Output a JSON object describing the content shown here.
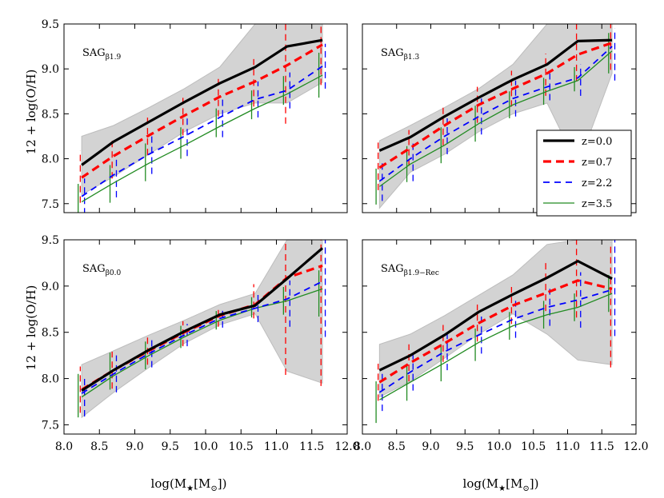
{
  "figure": {
    "ylabel": "12 + log(O/H)",
    "xlabel_main": "log(M",
    "xlabel_sub": "★",
    "xlabel_unit": "[M",
    "xlabel_unit_sub": "⊙",
    "xlabel_close": "])"
  },
  "chart_data": [
    {
      "type": "line",
      "panel_label": "SAG",
      "panel_label_sub": "β1.9",
      "xlim": [
        8.0,
        12.0
      ],
      "ylim": [
        7.4,
        9.5
      ],
      "xticks": [
        "8.0",
        "8.5",
        "9.0",
        "9.5",
        "10.0",
        "10.5",
        "11.0",
        "11.5",
        "12.0"
      ],
      "yticks": [
        "7.5",
        "8.0",
        "8.5",
        "9.0",
        "9.5"
      ],
      "x": [
        8.25,
        8.7,
        9.2,
        9.7,
        10.2,
        10.7,
        11.15,
        11.65
      ],
      "band": {
        "lower": [
          7.6,
          7.8,
          8.05,
          8.3,
          8.5,
          8.62,
          8.62,
          8.85
        ],
        "upper": [
          8.25,
          8.37,
          8.57,
          8.78,
          9.02,
          9.5,
          9.5,
          9.5
        ]
      },
      "series": [
        {
          "name": "z=0.0",
          "color": "#000000",
          "style": "solid",
          "values": [
            7.93,
            8.19,
            8.41,
            8.63,
            8.84,
            9.02,
            9.25,
            9.32
          ],
          "err_lo": [
            0,
            0,
            0,
            0,
            0,
            0,
            0,
            0
          ],
          "err_hi": [
            0,
            0,
            0,
            0,
            0,
            0,
            0,
            0
          ]
        },
        {
          "name": "z=0.7",
          "color": "#ff0000",
          "style": "dash",
          "values": [
            7.79,
            8.03,
            8.26,
            8.48,
            8.69,
            8.86,
            9.04,
            9.27
          ],
          "err_lo": [
            0.28,
            0.25,
            0.22,
            0.22,
            0.22,
            0.28,
            0.65,
            0.45
          ],
          "err_hi": [
            0.3,
            0.2,
            0.2,
            0.2,
            0.2,
            0.25,
            0.5,
            0.3
          ]
        },
        {
          "name": "z=2.2",
          "color": "#0000ff",
          "style": "dash",
          "values": [
            7.58,
            7.82,
            8.05,
            8.25,
            8.46,
            8.66,
            8.76,
            9.03
          ],
          "err_lo": [
            0.2,
            0.25,
            0.22,
            0.22,
            0.22,
            0.2,
            0.2,
            0.25
          ],
          "err_hi": [
            0.2,
            0.22,
            0.22,
            0.2,
            0.2,
            0.2,
            0.2,
            0.25
          ]
        },
        {
          "name": "z=3.5",
          "color": "#228b22",
          "style": "solid",
          "values": [
            7.52,
            7.73,
            7.95,
            8.15,
            8.36,
            8.56,
            8.72,
            8.93
          ],
          "err_lo": [
            0.12,
            0.22,
            0.2,
            0.15,
            0.12,
            0.12,
            0.12,
            0.25
          ],
          "err_hi": [
            0.2,
            0.2,
            0.22,
            0.2,
            0.2,
            0.2,
            0.2,
            0.25
          ]
        }
      ]
    },
    {
      "type": "line",
      "panel_label": "SAG",
      "panel_label_sub": "β1.3",
      "xlim": [
        8.0,
        12.0
      ],
      "ylim": [
        7.4,
        9.5
      ],
      "xticks": [
        "8.0",
        "8.5",
        "9.0",
        "9.5",
        "10.0",
        "10.5",
        "11.0",
        "11.5",
        "12.0"
      ],
      "yticks": [
        "7.5",
        "8.0",
        "8.5",
        "9.0",
        "9.5"
      ],
      "x": [
        8.25,
        8.7,
        9.2,
        9.7,
        10.2,
        10.7,
        11.15,
        11.65
      ],
      "band": {
        "lower": [
          7.45,
          7.85,
          8.05,
          8.3,
          8.5,
          8.62,
          7.92,
          8.95
        ],
        "upper": [
          8.2,
          8.37,
          8.57,
          8.78,
          9.05,
          9.5,
          9.5,
          9.5
        ]
      },
      "series": [
        {
          "name": "z=0.0",
          "color": "#000000",
          "style": "solid",
          "values": [
            8.09,
            8.24,
            8.47,
            8.68,
            8.88,
            9.05,
            9.31,
            9.32
          ],
          "err_lo": [
            0,
            0,
            0,
            0,
            0,
            0,
            0,
            0
          ],
          "err_hi": [
            0,
            0,
            0,
            0,
            0,
            0,
            0,
            0
          ]
        },
        {
          "name": "z=0.7",
          "color": "#ff0000",
          "style": "dash",
          "values": [
            7.9,
            8.12,
            8.37,
            8.6,
            8.78,
            8.95,
            9.16,
            9.29
          ],
          "err_lo": [
            0.25,
            0.2,
            0.22,
            0.2,
            0.2,
            0.25,
            0.3,
            0.3
          ],
          "err_hi": [
            0.28,
            0.2,
            0.2,
            0.2,
            0.2,
            0.22,
            0.45,
            0.35
          ]
        },
        {
          "name": "z=2.2",
          "color": "#0000ff",
          "style": "dash",
          "values": [
            7.75,
            8.0,
            8.25,
            8.47,
            8.67,
            8.8,
            8.9,
            9.25
          ],
          "err_lo": [
            0.22,
            0.25,
            0.2,
            0.2,
            0.2,
            0.15,
            0.2,
            0.38
          ],
          "err_hi": [
            0.2,
            0.2,
            0.2,
            0.2,
            0.2,
            0.15,
            0.15,
            0.2
          ]
        },
        {
          "name": "z=3.5",
          "color": "#228b22",
          "style": "solid",
          "values": [
            7.69,
            7.94,
            8.15,
            8.39,
            8.6,
            8.75,
            8.87,
            9.2
          ],
          "err_lo": [
            0.2,
            0.2,
            0.2,
            0.2,
            0.15,
            0.15,
            0.12,
            0.25
          ],
          "err_hi": [
            0.2,
            0.2,
            0.2,
            0.2,
            0.15,
            0.15,
            0.15,
            0.2
          ]
        }
      ]
    },
    {
      "type": "line",
      "panel_label": "SAG",
      "panel_label_sub": "β0.0",
      "xlim": [
        8.0,
        12.0
      ],
      "ylim": [
        7.4,
        9.5
      ],
      "xticks": [
        "8.0",
        "8.5",
        "9.0",
        "9.5",
        "10.0",
        "10.5",
        "11.0",
        "11.5",
        "12.0"
      ],
      "yticks": [
        "7.5",
        "8.0",
        "8.5",
        "9.0",
        "9.5"
      ],
      "x": [
        8.25,
        8.7,
        9.2,
        9.7,
        10.2,
        10.7,
        11.15,
        11.65
      ],
      "band": {
        "lower": [
          7.58,
          7.85,
          8.12,
          8.38,
          8.58,
          8.7,
          8.08,
          7.95
        ],
        "upper": [
          8.15,
          8.3,
          8.47,
          8.63,
          8.8,
          8.92,
          9.5,
          9.5
        ]
      },
      "series": [
        {
          "name": "z=0.0",
          "color": "#000000",
          "style": "solid",
          "values": [
            7.87,
            8.09,
            8.31,
            8.51,
            8.69,
            8.79,
            9.08,
            9.41
          ],
          "err_lo": [
            0,
            0,
            0,
            0,
            0,
            0,
            0,
            0
          ],
          "err_hi": [
            0,
            0,
            0,
            0,
            0,
            0,
            0,
            0
          ]
        },
        {
          "name": "z=0.7",
          "color": "#ff0000",
          "style": "dash",
          "values": [
            7.88,
            8.09,
            8.3,
            8.5,
            8.68,
            8.8,
            9.09,
            9.22
          ],
          "err_lo": [
            0.25,
            0.2,
            0.15,
            0.15,
            0.12,
            0.15,
            1.05,
            1.3
          ],
          "err_hi": [
            0.25,
            0.2,
            0.15,
            0.12,
            0.1,
            0.22,
            0.45,
            0.5
          ]
        },
        {
          "name": "z=2.2",
          "color": "#0000ff",
          "style": "dash",
          "values": [
            7.84,
            8.05,
            8.27,
            8.47,
            8.65,
            8.76,
            8.86,
            9.05
          ],
          "err_lo": [
            0.25,
            0.2,
            0.15,
            0.12,
            0.1,
            0.15,
            0.3,
            0.6
          ],
          "err_hi": [
            0.2,
            0.2,
            0.15,
            0.12,
            0.1,
            0.15,
            0.2,
            0.45
          ]
        },
        {
          "name": "z=3.5",
          "color": "#228b22",
          "style": "solid",
          "values": [
            7.8,
            8.03,
            8.25,
            8.45,
            8.63,
            8.76,
            8.84,
            8.97
          ],
          "err_lo": [
            0.22,
            0.15,
            0.15,
            0.12,
            0.1,
            0.1,
            0.15,
            0.3
          ],
          "err_hi": [
            0.25,
            0.25,
            0.15,
            0.12,
            0.1,
            0.12,
            0.15,
            0.2
          ]
        }
      ]
    },
    {
      "type": "line",
      "panel_label": "SAG",
      "panel_label_sub": "β1.9−Rec",
      "xlim": [
        8.0,
        12.0
      ],
      "ylim": [
        7.4,
        9.5
      ],
      "xticks": [
        "8.0",
        "8.5",
        "9.0",
        "9.5",
        "10.0",
        "10.5",
        "11.0",
        "11.5",
        "12.0"
      ],
      "yticks": [
        "7.5",
        "8.0",
        "8.5",
        "9.0",
        "9.5"
      ],
      "x": [
        8.25,
        8.7,
        9.2,
        9.7,
        10.2,
        10.7,
        11.15,
        11.65
      ],
      "band": {
        "lower": [
          7.8,
          7.97,
          8.22,
          8.48,
          8.7,
          8.48,
          8.2,
          8.15
        ],
        "upper": [
          8.37,
          8.48,
          8.68,
          8.9,
          9.12,
          9.45,
          9.5,
          9.5
        ]
      },
      "series": [
        {
          "name": "z=0.0",
          "color": "#000000",
          "style": "solid",
          "values": [
            8.09,
            8.25,
            8.47,
            8.72,
            8.91,
            9.09,
            9.27,
            9.08
          ],
          "err_lo": [
            0,
            0,
            0,
            0,
            0,
            0,
            0,
            0
          ],
          "err_hi": [
            0,
            0,
            0,
            0,
            0,
            0,
            0,
            0
          ]
        },
        {
          "name": "z=0.7",
          "color": "#ff0000",
          "style": "dash",
          "values": [
            7.96,
            8.17,
            8.38,
            8.6,
            8.79,
            8.93,
            9.06,
            8.97
          ],
          "err_lo": [
            0.2,
            0.2,
            0.2,
            0.2,
            0.2,
            0.2,
            0.4,
            0.85
          ],
          "err_hi": [
            0.2,
            0.2,
            0.2,
            0.2,
            0.2,
            0.33,
            0.5,
            0.5
          ]
        },
        {
          "name": "z=2.2",
          "color": "#0000ff",
          "style": "dash",
          "values": [
            7.85,
            8.07,
            8.29,
            8.47,
            8.64,
            8.77,
            8.85,
            8.96
          ],
          "err_lo": [
            0.2,
            0.2,
            0.2,
            0.2,
            0.2,
            0.2,
            0.3,
            0.5
          ],
          "err_hi": [
            0.2,
            0.2,
            0.2,
            0.2,
            0.2,
            0.2,
            0.3,
            0.6
          ]
        },
        {
          "name": "z=3.5",
          "color": "#228b22",
          "style": "solid",
          "values": [
            7.77,
            7.96,
            8.17,
            8.39,
            8.57,
            8.69,
            8.77,
            8.92
          ],
          "err_lo": [
            0.25,
            0.2,
            0.2,
            0.2,
            0.15,
            0.15,
            0.15,
            0.2
          ],
          "err_hi": [
            0.2,
            0.2,
            0.2,
            0.15,
            0.15,
            0.15,
            0.15,
            0.2
          ]
        }
      ]
    }
  ],
  "legend": {
    "entries": [
      {
        "label": "z=0.0",
        "color": "#000000",
        "style": "solid"
      },
      {
        "label": "z=0.7",
        "color": "#ff0000",
        "style": "dash"
      },
      {
        "label": "z=2.2",
        "color": "#0000ff",
        "style": "dash"
      },
      {
        "label": "z=3.5",
        "color": "#228b22",
        "style": "solid"
      }
    ]
  }
}
